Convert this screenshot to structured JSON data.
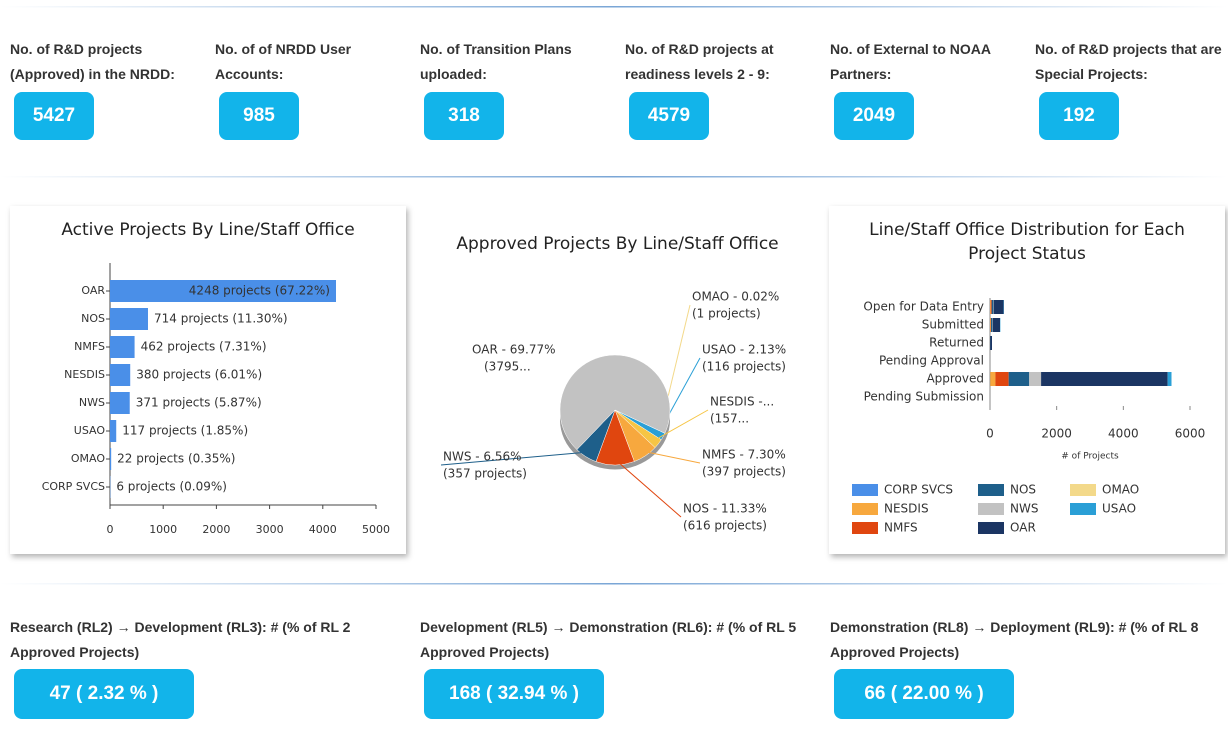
{
  "stats": [
    {
      "label": "No. of R&D projects (Approved) in the NRDD:",
      "value": 5427
    },
    {
      "label": "No. of of NRDD User Accounts:",
      "value": 985
    },
    {
      "label": "No. of Transition Plans uploaded:",
      "value": 318
    },
    {
      "label": "No. of R&D projects at readiness levels 2 - 9:",
      "value": 4579
    },
    {
      "label": "No. of External to NOAA Partners:",
      "value": 2049
    },
    {
      "label": "No. of R&D projects that are Special Projects:",
      "value": 192
    }
  ],
  "chart_data": [
    {
      "type": "bar",
      "title": "Active Projects By Line/Staff Office",
      "categories": [
        "OAR",
        "NOS",
        "NMFS",
        "NESDIS",
        "NWS",
        "USAO",
        "OMAO",
        "CORP SVCS"
      ],
      "values": [
        4248,
        714,
        462,
        380,
        371,
        117,
        22,
        6
      ],
      "value_labels": [
        "4248 projects (67.22%)",
        "714 projects (11.30%)",
        "462 projects (7.31%)",
        "380 projects (6.01%)",
        "371 projects (5.87%)",
        "117 projects (1.85%)",
        "22 projects (0.35%)",
        "6 projects (0.09%)"
      ],
      "color": "#4a8fe8",
      "xlim": [
        0,
        5000
      ],
      "xticks": [
        0,
        1000,
        2000,
        3000,
        4000,
        5000
      ]
    },
    {
      "type": "pie",
      "title": "Approved Projects By Line/Staff Office",
      "categories": [
        "OMAO",
        "USAO",
        "NESDIS",
        "NMFS",
        "NOS",
        "NWS",
        "OAR"
      ],
      "values": [
        0.02,
        2.13,
        2.89,
        7.3,
        11.33,
        6.56,
        69.77
      ],
      "value_labels": [
        "OMAO - 0.02%",
        "USAO - 2.13%",
        "NESDIS -...",
        "NMFS - 7.30%",
        "NOS - 11.33%",
        "NWS - 6.56%",
        "OAR - 69.77%"
      ],
      "sublabels": [
        "(1 projects)",
        "(116 projects)",
        "(157...",
        "(397 projects)",
        "(616 projects)",
        "(357 projects)",
        "(3795..."
      ],
      "colors": [
        "#f3d98a",
        "#2a9fd6",
        "#f6c544",
        "#f7a83e",
        "#e0460f",
        "#1e5f8a",
        "#c2c2c2"
      ]
    },
    {
      "type": "stacked_bar",
      "title": "Line/Staff Office Distribution for Each Project Status",
      "categories": [
        "Open for Data Entry",
        "Submitted",
        "Returned",
        "Pending Approval",
        "Approved",
        "Pending Submission"
      ],
      "series": [
        {
          "name": "CORP SVCS",
          "color": "#4a8fe8",
          "values": [
            0,
            0,
            0,
            0,
            6,
            0
          ]
        },
        {
          "name": "NESDIS",
          "color": "#f7a83e",
          "values": [
            20,
            20,
            0,
            0,
            157,
            0
          ]
        },
        {
          "name": "NMFS",
          "color": "#e0460f",
          "values": [
            30,
            10,
            0,
            0,
            397,
            0
          ]
        },
        {
          "name": "NOS",
          "color": "#1e5f8a",
          "values": [
            50,
            40,
            10,
            0,
            616,
            0
          ]
        },
        {
          "name": "NWS",
          "color": "#c2c2c2",
          "values": [
            10,
            10,
            0,
            0,
            357,
            0
          ]
        },
        {
          "name": "OAR",
          "color": "#1b3563",
          "values": [
            300,
            220,
            50,
            0,
            3795,
            0
          ]
        },
        {
          "name": "OMAO",
          "color": "#f3d98a",
          "values": [
            0,
            0,
            0,
            0,
            1,
            0
          ]
        },
        {
          "name": "USAO",
          "color": "#2a9fd6",
          "values": [
            10,
            10,
            0,
            0,
            116,
            0
          ]
        }
      ],
      "xlim": [
        0,
        6000
      ],
      "xticks": [
        0,
        2000,
        4000,
        6000
      ],
      "xlabel": "# of Projects",
      "legend": "bottom"
    }
  ],
  "transitions": [
    {
      "label": "Research (RL2) → Development (RL3): # (% of RL 2 Approved Projects)",
      "value": "47 ( 2.32 % )"
    },
    {
      "label": "Development (RL5) → Demonstration (RL6): # (% of RL 5 Approved Projects)",
      "value": "168 ( 32.94 % )"
    },
    {
      "label": "Demonstration (RL8) → Deployment (RL9): # (% of RL 8 Approved Projects)",
      "value": "66 ( 22.00 % )"
    }
  ]
}
